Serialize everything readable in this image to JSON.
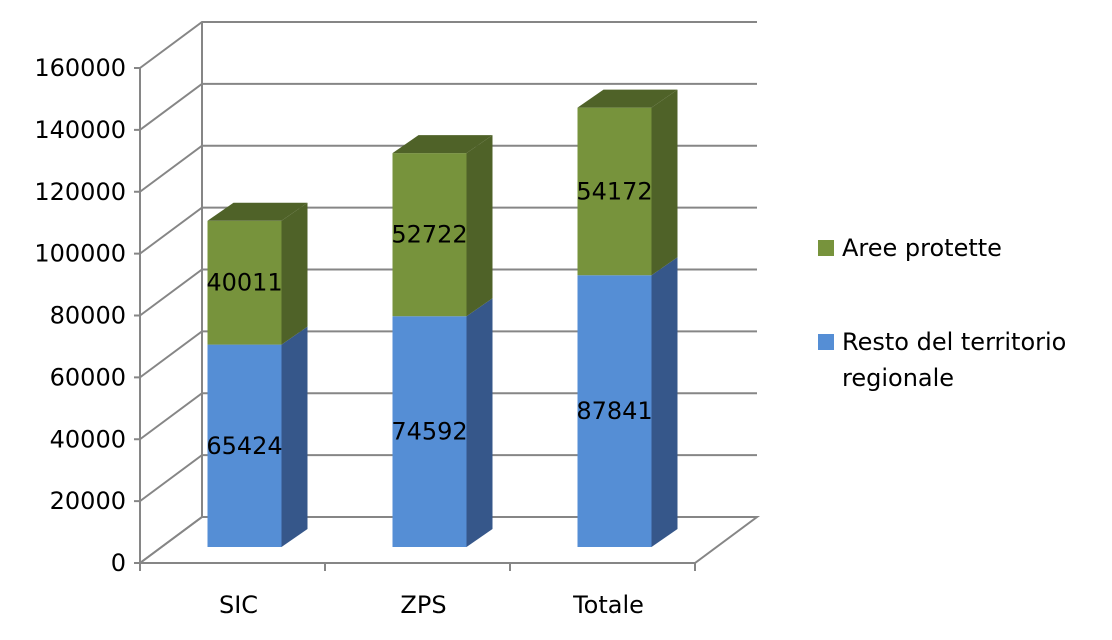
{
  "chart_data": {
    "type": "bar",
    "stacked": true,
    "three_d": true,
    "categories": [
      "SIC",
      "ZPS",
      "Totale"
    ],
    "series": [
      {
        "name": "Resto del territorio regionale",
        "legend_lines": [
          "Resto del territorio",
          "regionale"
        ],
        "values": [
          65424,
          74592,
          87841
        ],
        "color": "#558ED5",
        "side_color": "#36578A"
      },
      {
        "name": "Aree protette",
        "legend_lines": [
          "Aree protette"
        ],
        "values": [
          40011,
          52722,
          54172
        ],
        "color": "#77933C",
        "side_color": "#4F6228"
      }
    ],
    "ylim": [
      0,
      160000
    ],
    "yticks": [
      "0",
      "20000",
      "40000",
      "60000",
      "80000",
      "100000",
      "120000",
      "140000",
      "160000"
    ],
    "grid": true,
    "legend_position": "right",
    "data_labels": true
  }
}
